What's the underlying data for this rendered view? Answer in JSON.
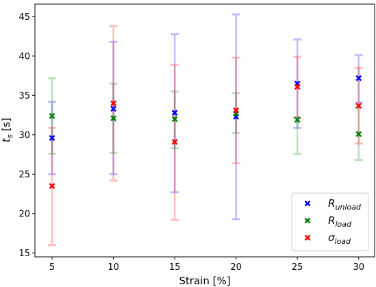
{
  "chart_data": {
    "type": "scatter",
    "xlabel": "Strain [%]",
    "ylabel": {
      "main": "t",
      "sub": "s",
      "unit": " [s]"
    },
    "x": [
      5,
      10,
      15,
      20,
      25,
      30
    ],
    "xticks": [
      "5",
      "10",
      "15",
      "20",
      "25",
      "30"
    ],
    "yticks": [
      "15",
      "20",
      "25",
      "30",
      "35",
      "40",
      "45"
    ],
    "xlim": [
      3.6,
      31.3
    ],
    "ylim": [
      14.5,
      46.6
    ],
    "grid": false,
    "legend_position": "lower right",
    "series": [
      {
        "name": {
          "main": "R",
          "sub": "unload"
        },
        "color": "#0000ff",
        "values": [
          29.6,
          33.3,
          32.8,
          32.3,
          36.5,
          37.2
        ],
        "err_low": [
          25.0,
          25.0,
          22.7,
          19.3,
          30.9,
          34.1
        ],
        "err_high": [
          34.2,
          41.8,
          42.8,
          45.3,
          42.1,
          40.1
        ]
      },
      {
        "name": {
          "main": "R",
          "sub": "load"
        },
        "color": "#008000",
        "values": [
          32.4,
          32.1,
          32.0,
          32.7,
          31.9,
          30.1
        ],
        "err_low": [
          27.6,
          27.7,
          28.3,
          30.2,
          27.6,
          26.8
        ],
        "err_high": [
          37.2,
          36.5,
          35.5,
          35.3,
          32.2,
          33.4
        ]
      },
      {
        "name": {
          "main": "σ",
          "sub": "load"
        },
        "color": "#ff0000",
        "values": [
          23.5,
          34.0,
          29.1,
          33.1,
          36.1,
          33.7
        ],
        "err_low": [
          16.0,
          24.2,
          19.2,
          26.4,
          32.2,
          28.9
        ],
        "err_high": [
          30.9,
          43.8,
          38.9,
          39.8,
          39.9,
          38.5
        ]
      }
    ]
  }
}
